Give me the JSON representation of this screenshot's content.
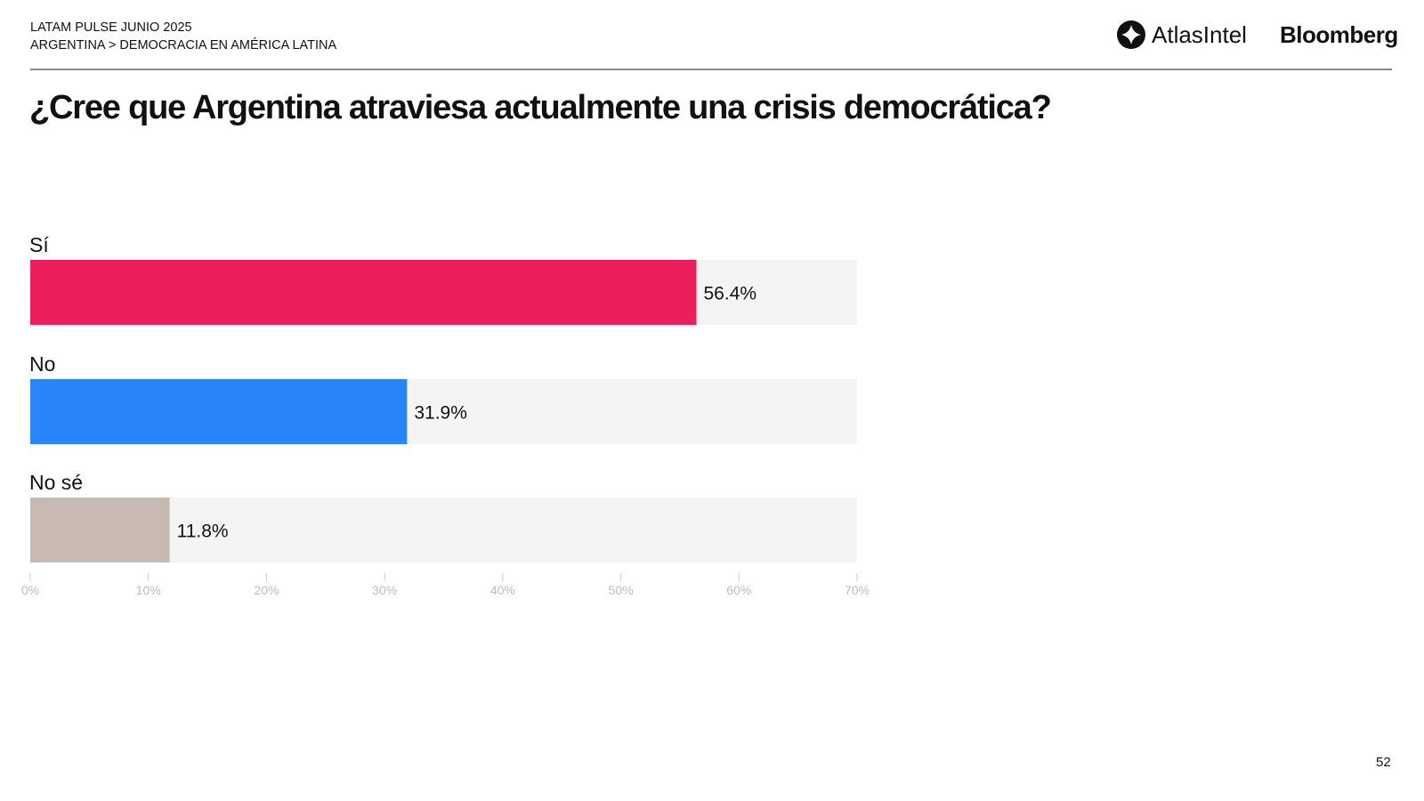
{
  "header": {
    "line1": "LATAM PULSE JUNIO 2025",
    "line2": "ARGENTINA > DEMOCRACIA EN AMÉRICA LATINA"
  },
  "logos": {
    "atlas": "AtlasIntel",
    "bloomberg": "Bloomberg"
  },
  "page_number": "52",
  "chart_data": {
    "type": "bar",
    "orientation": "horizontal",
    "title": "¿Cree que Argentina atraviesa actualmente una crisis democrática?",
    "categories": [
      "Sí",
      "No",
      "No sé"
    ],
    "values": [
      56.4,
      31.9,
      11.8
    ],
    "value_labels": [
      "56.4%",
      "31.9%",
      "11.8%"
    ],
    "colors": [
      "#ec1e5b",
      "#2886fa",
      "#c8bab2"
    ],
    "track_color": "#f4f4f2",
    "xlim": [
      0,
      70
    ],
    "xticks": [
      0,
      10,
      20,
      30,
      40,
      50,
      60,
      70
    ],
    "xtick_labels": [
      "0%",
      "10%",
      "20%",
      "30%",
      "40%",
      "50%",
      "60%",
      "70%"
    ],
    "grid": false,
    "legend": "none"
  }
}
